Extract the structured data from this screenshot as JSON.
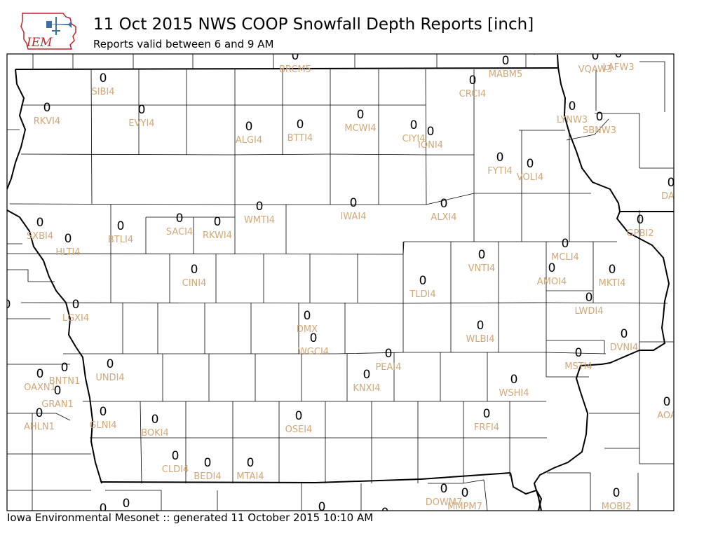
{
  "header": {
    "title": "11 Oct 2015 NWS COOP Snowfall Depth Reports [inch]",
    "subtitle": "Reports valid between 6 and 9 AM",
    "logo_text": "IEM"
  },
  "footer": "Iowa Environmental Mesonet :: generated 11 October 2015 10:10 AM",
  "colors": {
    "value": "#000000",
    "station": "#d2a878",
    "logo_red": "#c0272d",
    "logo_blue": "#3a6ea5"
  },
  "stations": [
    {
      "v": "0",
      "id": "BRCM5"
    },
    {
      "v": "0",
      "id": "MABM5"
    },
    {
      "v": "0",
      "id": "VQAW3"
    },
    {
      "v": "0",
      "id": "LAFW3"
    },
    {
      "v": "0",
      "id": "SIBI4"
    },
    {
      "v": "0",
      "id": "CRCI4"
    },
    {
      "v": "0",
      "id": "RKVI4"
    },
    {
      "v": "0",
      "id": "EVYI4"
    },
    {
      "v": "0",
      "id": "MCWI4"
    },
    {
      "v": "0",
      "id": "LYNW3"
    },
    {
      "v": "0",
      "id": "SBNW3"
    },
    {
      "v": "0",
      "id": "ALGI4"
    },
    {
      "v": "0",
      "id": "BTTI4"
    },
    {
      "v": "0",
      "id": "CIYI4"
    },
    {
      "v": "0",
      "id": "IONI4"
    },
    {
      "v": "0",
      "id": "FYTI4"
    },
    {
      "v": "0",
      "id": "VOLI4"
    },
    {
      "v": "0",
      "id": "DAR"
    },
    {
      "v": "0",
      "id": "IWAI4"
    },
    {
      "v": "0",
      "id": "ALXI4"
    },
    {
      "v": "0",
      "id": "WMTI4"
    },
    {
      "v": "0",
      "id": "SACI4"
    },
    {
      "v": "0",
      "id": "RKWI4"
    },
    {
      "v": "0",
      "id": "BTLI4"
    },
    {
      "v": "0",
      "id": "SXBI4"
    },
    {
      "v": "0",
      "id": "HLTI4"
    },
    {
      "v": "0",
      "id": "GPBI2"
    },
    {
      "v": "0",
      "id": "MCLI4"
    },
    {
      "v": "0",
      "id": "VNTI4"
    },
    {
      "v": "0",
      "id": "AMOI4"
    },
    {
      "v": "0",
      "id": "MKTI4"
    },
    {
      "v": "0",
      "id": "CINI4"
    },
    {
      "v": "0",
      "id": "TLDI4"
    },
    {
      "v": "0",
      "id": "LWDI4"
    },
    {
      "v": "0",
      "id": "LGXI4"
    },
    {
      "v": "0",
      "id": "DMX"
    },
    {
      "v": "0",
      "id": "WLBI4"
    },
    {
      "v": "0",
      "id": "DVNI4"
    },
    {
      "v": "0",
      "id": "WGCI4"
    },
    {
      "v": "0",
      "id": "PEAI4"
    },
    {
      "v": "0",
      "id": "MSTI4"
    },
    {
      "v": "0",
      "id": "UNDI4"
    },
    {
      "v": "0",
      "id": "BNTN1"
    },
    {
      "v": "0",
      "id": "OAXN1"
    },
    {
      "v": "0",
      "id": "GRAN1"
    },
    {
      "v": "0",
      "id": "KNXI4"
    },
    {
      "v": "0",
      "id": "WSHI4"
    },
    {
      "v": "0",
      "id": "AOA"
    },
    {
      "v": "0",
      "id": "GLNI4"
    },
    {
      "v": "0",
      "id": "AHLN1"
    },
    {
      "v": "0",
      "id": "BOKI4"
    },
    {
      "v": "0",
      "id": "OSEI4"
    },
    {
      "v": "0",
      "id": "FRFI4"
    },
    {
      "v": "0",
      "id": "CLDI4"
    },
    {
      "v": "0",
      "id": "BEDI4"
    },
    {
      "v": "0",
      "id": "MTAI4"
    },
    {
      "v": "0",
      "id": "DOWM7"
    },
    {
      "v": "0",
      "id": "MMPM7"
    },
    {
      "v": "0",
      "id": "MOBI2"
    }
  ],
  "edge_values": [
    "0",
    "0",
    "0",
    "0",
    "0"
  ]
}
